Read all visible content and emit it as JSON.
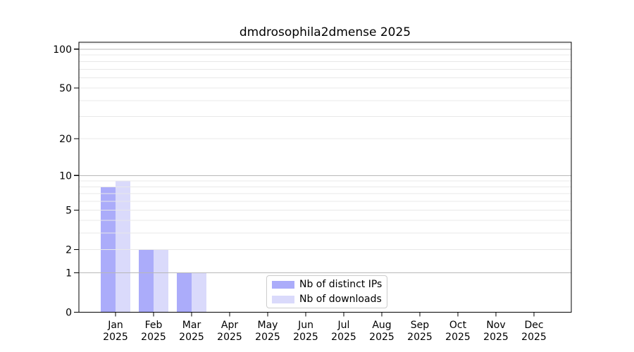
{
  "title": "dmdrosophila2dmense 2025",
  "chart_data": {
    "type": "bar",
    "title": "dmdrosophila2dmense 2025",
    "categories": [
      "Jan 2025",
      "Feb 2025",
      "Mar 2025",
      "Apr 2025",
      "May 2025",
      "Jun 2025",
      "Jul 2025",
      "Aug 2025",
      "Sep 2025",
      "Oct 2025",
      "Nov 2025",
      "Dec 2025"
    ],
    "series": [
      {
        "name": "Nb of distinct IPs",
        "color": "#abacfa",
        "values": [
          8,
          2,
          1,
          0,
          0,
          0,
          0,
          0,
          0,
          0,
          0,
          0
        ]
      },
      {
        "name": "Nb of downloads",
        "color": "#dadafb",
        "values": [
          9,
          2,
          1,
          0,
          0,
          0,
          0,
          0,
          0,
          0,
          0,
          0
        ]
      }
    ],
    "xlabel": "",
    "ylabel": "",
    "yscale": "log1p",
    "ylim": [
      0,
      113
    ],
    "y_tick_labels": [
      "0",
      "1",
      "2",
      "5",
      "10",
      "20",
      "50",
      "100"
    ],
    "y_tick_values": [
      0,
      1,
      2,
      5,
      10,
      20,
      50,
      100
    ],
    "y_major_gridlines": [
      1,
      10,
      100
    ],
    "y_minor_gridlines": [
      2,
      3,
      4,
      5,
      6,
      7,
      8,
      9,
      20,
      30,
      40,
      50,
      60,
      70,
      80,
      90,
      110
    ],
    "grid": true,
    "legend_position": "lower center"
  },
  "style": {
    "bar_color_ips": "#abacfa",
    "bar_color_downloads": "#dadafb",
    "grid_major_color": "#b8b8b8",
    "grid_minor_color": "#e8e8e8",
    "spine_color": "#000000",
    "text_color": "#000000",
    "legend_border_color": "#cccccc"
  }
}
